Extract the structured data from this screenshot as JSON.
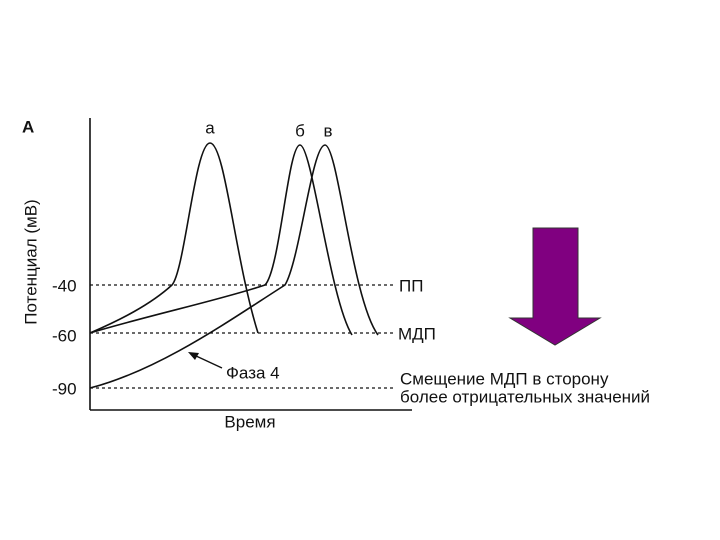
{
  "panel_label": "А",
  "axes": {
    "y_label": "Потенциал (мВ)",
    "x_label": "Время",
    "y_ticks": [
      "-40",
      "-60",
      "-90"
    ]
  },
  "curve_labels": [
    "а",
    "б",
    "в"
  ],
  "level_labels": [
    "ПП",
    "МДП"
  ],
  "annotation": "Фаза 4",
  "caption": [
    "Смещение МДП в сторону",
    "более отрицательных значений"
  ]
}
